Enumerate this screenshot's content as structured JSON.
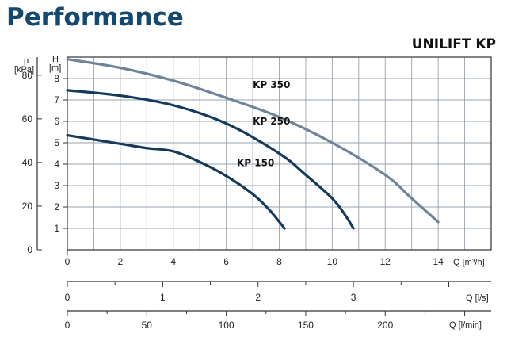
{
  "header": {
    "title": "Performance",
    "product": "UNILIFT KP"
  },
  "chart_data": {
    "type": "line",
    "title": "Performance",
    "subtitle": "UNILIFT KP",
    "xlabel": "Q [m³/h]",
    "ylabel_left": "p [kPa]",
    "ylabel_right": "H [m]",
    "xlim": [
      0,
      16
    ],
    "ylim": [
      0,
      9
    ],
    "x_ticks": [
      "0",
      "2",
      "4",
      "6",
      "8",
      "10",
      "12",
      "14"
    ],
    "y_ticks_H": [
      "1",
      "2",
      "3",
      "4",
      "5",
      "6",
      "7",
      "8"
    ],
    "y_ticks_p": [
      "0",
      "20",
      "40",
      "60",
      "80"
    ],
    "grid": true,
    "series": [
      {
        "name": "KP 350",
        "color": "#6f839a",
        "x": [
          0,
          2,
          4,
          6,
          8,
          10,
          12,
          13,
          14
        ],
        "y": [
          8.9,
          8.5,
          7.9,
          7.1,
          6.2,
          5.0,
          3.5,
          2.4,
          1.3
        ]
      },
      {
        "name": "KP 250",
        "color": "#143a5c",
        "x": [
          0,
          2,
          4,
          6,
          8,
          9,
          10,
          10.5,
          10.8
        ],
        "y": [
          7.45,
          7.2,
          6.75,
          5.9,
          4.5,
          3.5,
          2.4,
          1.6,
          1.0
        ]
      },
      {
        "name": "KP 150",
        "color": "#143a5c",
        "x": [
          0,
          2,
          3,
          4,
          5,
          6,
          7,
          7.6,
          8.2
        ],
        "y": [
          5.35,
          4.95,
          4.75,
          4.6,
          4.1,
          3.45,
          2.6,
          1.9,
          1.0
        ]
      }
    ],
    "secondary_axes": [
      {
        "label": "Q [l/s]",
        "ticks": [
          "0",
          "1",
          "2",
          "3"
        ]
      },
      {
        "label": "Q [l/min]",
        "ticks": [
          "0",
          "50",
          "100",
          "150",
          "200"
        ]
      }
    ]
  }
}
